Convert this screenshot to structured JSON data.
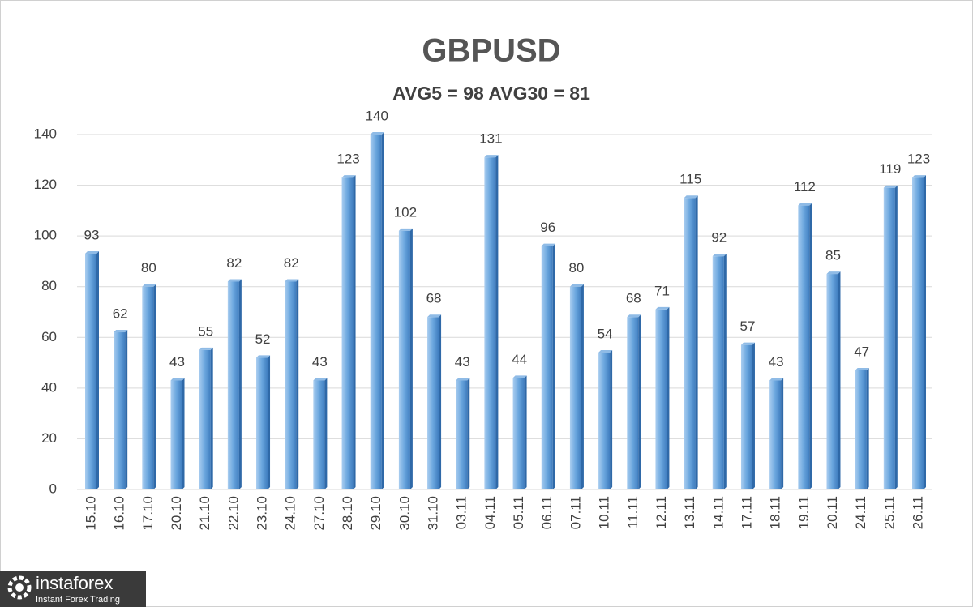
{
  "chart_data": {
    "type": "bar",
    "title": "GBPUSD",
    "subtitle": "AVG5 = 98 AVG30 = 81",
    "categories": [
      "15.10",
      "16.10",
      "17.10",
      "20.10",
      "21.10",
      "22.10",
      "23.10",
      "24.10",
      "27.10",
      "28.10",
      "29.10",
      "30.10",
      "31.10",
      "03.11",
      "04.11",
      "05.11",
      "06.11",
      "07.11",
      "10.11",
      "11.11",
      "12.11",
      "13.11",
      "14.11",
      "17.11",
      "18.11",
      "19.11",
      "20.11",
      "24.11",
      "25.11",
      "26.11"
    ],
    "values": [
      93,
      62,
      80,
      43,
      55,
      82,
      52,
      82,
      43,
      123,
      140,
      102,
      68,
      43,
      131,
      44,
      96,
      80,
      54,
      68,
      71,
      115,
      92,
      57,
      43,
      112,
      85,
      47,
      119,
      123
    ],
    "color": "#5b9bd5",
    "ylim": [
      0,
      140
    ],
    "yticks": [
      0,
      20,
      40,
      60,
      80,
      100,
      120,
      140
    ],
    "grid": true
  },
  "watermark": {
    "brand": "instaforex",
    "tagline": "Instant Forex Trading"
  }
}
